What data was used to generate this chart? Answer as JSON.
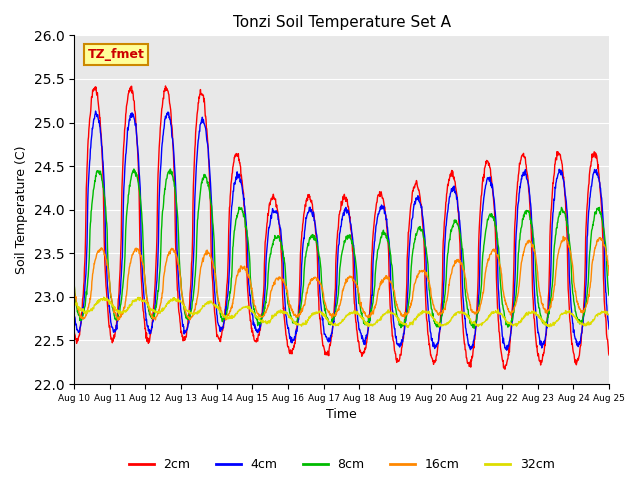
{
  "title": "Tonzi Soil Temperature Set A",
  "xlabel": "Time",
  "ylabel": "Soil Temperature (C)",
  "ylim": [
    22.0,
    26.0
  ],
  "yticks": [
    22.0,
    22.5,
    23.0,
    23.5,
    24.0,
    24.5,
    25.0,
    25.5,
    26.0
  ],
  "annotation_text": "TZ_fmet",
  "annotation_bg": "#ffff99",
  "annotation_border": "#cc8800",
  "line_colors": {
    "2cm": "#ff0000",
    "4cm": "#0000ff",
    "8cm": "#00bb00",
    "16cm": "#ff8800",
    "32cm": "#dddd00"
  },
  "background_color": "#e8e8e8",
  "num_points": 1440
}
